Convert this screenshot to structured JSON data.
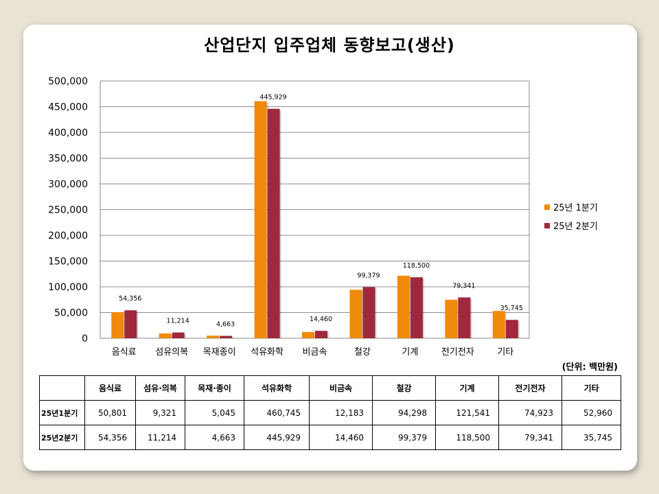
{
  "colors": {
    "series1": "#f08a0a",
    "series2": "#a0283c"
  },
  "chart_data": {
    "type": "bar",
    "title": "산업단지 입주업체 동향보고(생산)",
    "categories": [
      "음식료",
      "섬유의복",
      "목재종이",
      "석유화학",
      "비금속",
      "철강",
      "기계",
      "전기전자",
      "기타"
    ],
    "series": [
      {
        "name": "25년 1분기",
        "values": [
          50801,
          9321,
          5045,
          460745,
          12183,
          94298,
          121541,
          74923,
          52960
        ]
      },
      {
        "name": "25년 2분기",
        "values": [
          54356,
          11214,
          4663,
          445929,
          14460,
          99379,
          118500,
          79341,
          35745
        ]
      }
    ],
    "data_labels": [
      "54,356",
      "11,214",
      "4,663",
      "445,929",
      "14,460",
      "99,379",
      "118,500",
      "79,341",
      "35,745"
    ],
    "y_ticks": [
      "0",
      "50,000",
      "100,000",
      "150,000",
      "200,000",
      "250,000",
      "300,000",
      "350,000",
      "400,000",
      "450,000",
      "500,000"
    ],
    "ylim": [
      0,
      500000
    ],
    "grid": true,
    "legend_position": "right"
  },
  "unit_label": "(단위: 백만원)",
  "table": {
    "headers": [
      "음식료",
      "섬유·의복",
      "목재·종이",
      "석유화학",
      "비금속",
      "철강",
      "기계",
      "전기전자",
      "기타"
    ],
    "rows": [
      {
        "label": "25년1분기",
        "values": [
          "50,801",
          "9,321",
          "5,045",
          "460,745",
          "12,183",
          "94,298",
          "121,541",
          "74,923",
          "52,960"
        ]
      },
      {
        "label": "25년2분기",
        "values": [
          "54,356",
          "11,214",
          "4,663",
          "445,929",
          "14,460",
          "99,379",
          "118,500",
          "79,341",
          "35,745"
        ]
      }
    ]
  }
}
